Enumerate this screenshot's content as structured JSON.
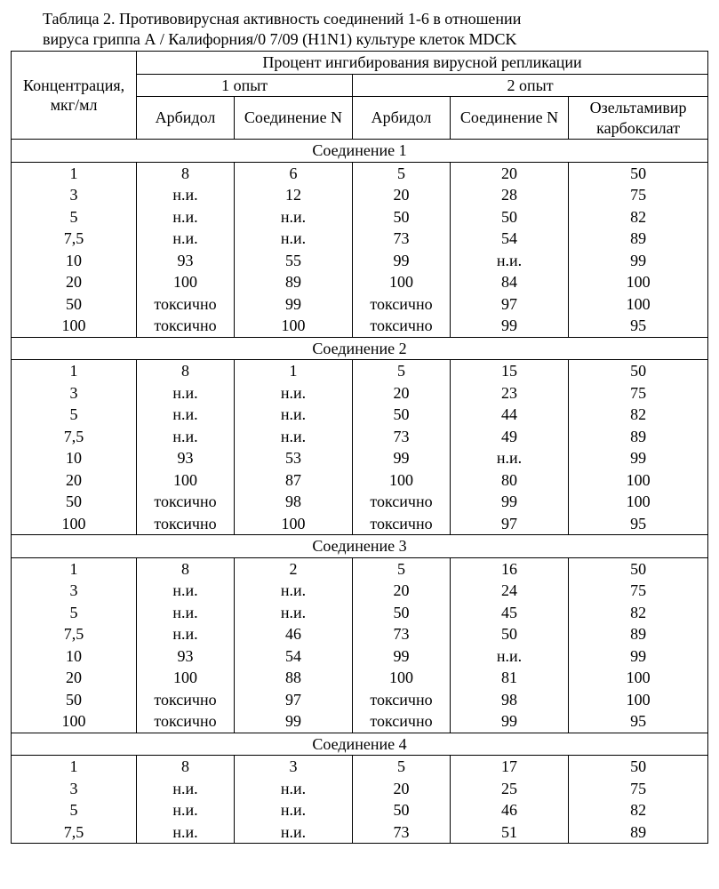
{
  "title_line1": "Таблица 2.  Противовирусная активность соединений 1-6 в  отношении",
  "title_line2": "вируса гриппа А / Калифорния/0 7/09 (H1N1) культуре  клеток MDCK",
  "headers": {
    "concentration": "Концентрация, мкг/мл",
    "main": "Процент ингибирования вирусной репликации",
    "exp1": "1 опыт",
    "exp2": "2 опыт",
    "arbidol": "Арбидол",
    "compoundN": "Соединение N",
    "oselta": "Озельтамивир карбоксилат"
  },
  "sections": [
    {
      "name": "Соединение 1",
      "full_border": true,
      "rows": [
        [
          "1",
          "8",
          "6",
          "5",
          "20",
          "50"
        ],
        [
          "3",
          "н.и.",
          "12",
          "20",
          "28",
          "75"
        ],
        [
          "5",
          "н.и.",
          "н.и.",
          "50",
          "50",
          "82"
        ],
        [
          "7,5",
          "н.и.",
          "н.и.",
          "73",
          "54",
          "89"
        ],
        [
          "10",
          "93",
          "55",
          "99",
          "н.и.",
          "99"
        ],
        [
          "20",
          "100",
          "89",
          "100",
          "84",
          "100"
        ],
        [
          "50",
          "токсично",
          "99",
          "токсично",
          "97",
          "100"
        ],
        [
          "100",
          "токсично",
          "100",
          "токсично",
          "99",
          "95"
        ]
      ]
    },
    {
      "name": "Соединение 2",
      "full_border": true,
      "rows": [
        [
          "1",
          "8",
          "1",
          "5",
          "15",
          "50"
        ],
        [
          "3",
          "н.и.",
          "н.и.",
          "20",
          "23",
          "75"
        ],
        [
          "5",
          "н.и.",
          "н.и.",
          "50",
          "44",
          "82"
        ],
        [
          "7,5",
          "н.и.",
          "н.и.",
          "73",
          "49",
          "89"
        ],
        [
          "10",
          "93",
          "53",
          "99",
          "н.и.",
          "99"
        ],
        [
          "20",
          "100",
          "87",
          "100",
          "80",
          "100"
        ],
        [
          "50",
          "токсично",
          "98",
          "токсично",
          "99",
          "100"
        ],
        [
          "100",
          "токсично",
          "100",
          "токсично",
          "97",
          "95"
        ]
      ]
    },
    {
      "name": "Соединение 3",
      "full_border": true,
      "rows": [
        [
          "1",
          "8",
          "2",
          "5",
          "16",
          "50"
        ],
        [
          "3",
          "н.и.",
          "н.и.",
          "20",
          "24",
          "75"
        ],
        [
          "5",
          "н.и.",
          "н.и.",
          "50",
          "45",
          "82"
        ],
        [
          "7,5",
          "н.и.",
          "46",
          "73",
          "50",
          "89"
        ],
        [
          "10",
          "93",
          "54",
          "99",
          "н.и.",
          "99"
        ],
        [
          "20",
          "100",
          "88",
          "100",
          "81",
          "100"
        ],
        [
          "50",
          "токсично",
          "97",
          "токсично",
          "98",
          "100"
        ],
        [
          "100",
          "токсично",
          "99",
          "токсично",
          "99",
          "95"
        ]
      ]
    },
    {
      "name": "Соединение 4",
      "full_border": true,
      "rows": [
        [
          "1",
          "8",
          "3",
          "5",
          "17",
          "50"
        ],
        [
          "3",
          "н.и.",
          "н.и.",
          "20",
          "25",
          "75"
        ],
        [
          "5",
          "н.и.",
          "н.и.",
          "50",
          "46",
          "82"
        ],
        [
          "7,5",
          "н.и.",
          "н.и.",
          "73",
          "51",
          "89"
        ]
      ]
    }
  ],
  "style": {
    "background_color": "#ffffff",
    "border_color": "#000000",
    "text_color": "#000000",
    "font_family": "Times New Roman",
    "font_size_pt": 14,
    "col_widths_pct": [
      18,
      14,
      17,
      14,
      17,
      20
    ]
  }
}
